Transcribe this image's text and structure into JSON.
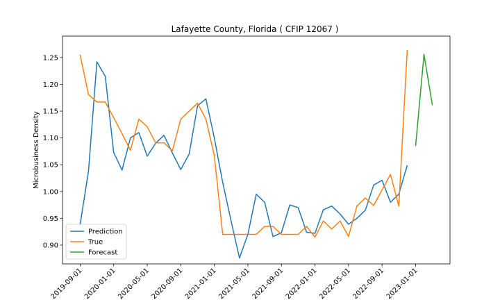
{
  "chart_data": {
    "type": "line",
    "title": "Lafayette County, Florida ( CFIP 12067 )",
    "xlabel": "",
    "ylabel": "Microbusiness Density",
    "x_ticks": [
      "2019-09-01",
      "2020-01-01",
      "2020-05-01",
      "2020-09-01",
      "2021-01-01",
      "2021-05-01",
      "2021-09-01",
      "2022-01-01",
      "2022-05-01",
      "2022-09-01",
      "2023-01-01"
    ],
    "ylim": [
      0.865,
      1.29
    ],
    "y_ticks": [
      0.9,
      0.95,
      1.0,
      1.05,
      1.1,
      1.15,
      1.2,
      1.25
    ],
    "grid": false,
    "legend_position": "lower-left",
    "series": [
      {
        "name": "Prediction",
        "color": "#1f77b4",
        "x": [
          "2019-09-01",
          "2019-10-01",
          "2019-11-01",
          "2019-12-01",
          "2020-01-01",
          "2020-02-01",
          "2020-03-01",
          "2020-04-01",
          "2020-05-01",
          "2020-06-01",
          "2020-07-01",
          "2020-08-01",
          "2020-09-01",
          "2020-10-01",
          "2020-11-01",
          "2020-12-01",
          "2021-01-01",
          "2021-02-01",
          "2021-03-01",
          "2021-04-01",
          "2021-05-01",
          "2021-06-01",
          "2021-07-01",
          "2021-08-01",
          "2021-09-01",
          "2021-10-01",
          "2021-11-01",
          "2021-12-01",
          "2022-01-01",
          "2022-02-01",
          "2022-03-01",
          "2022-04-01",
          "2022-05-01",
          "2022-06-01",
          "2022-07-01",
          "2022-08-01",
          "2022-09-01",
          "2022-10-01",
          "2022-11-01",
          "2022-12-01"
        ],
        "values": [
          0.938,
          1.038,
          1.242,
          1.215,
          1.073,
          1.04,
          1.1,
          1.11,
          1.066,
          1.09,
          1.105,
          1.072,
          1.041,
          1.07,
          1.16,
          1.173,
          1.1,
          1.017,
          0.945,
          0.876,
          0.92,
          0.995,
          0.98,
          0.916,
          0.923,
          0.975,
          0.97,
          0.924,
          0.922,
          0.966,
          0.973,
          0.958,
          0.939,
          0.95,
          0.965,
          1.012,
          1.021,
          0.98,
          0.995,
          1.049
        ]
      },
      {
        "name": "True",
        "color": "#ff7f0e",
        "x": [
          "2019-09-01",
          "2019-10-01",
          "2019-11-01",
          "2019-12-01",
          "2020-01-01",
          "2020-02-01",
          "2020-03-01",
          "2020-04-01",
          "2020-05-01",
          "2020-06-01",
          "2020-07-01",
          "2020-08-01",
          "2020-09-01",
          "2020-10-01",
          "2020-11-01",
          "2020-12-01",
          "2021-01-01",
          "2021-02-01",
          "2021-03-01",
          "2021-04-01",
          "2021-05-01",
          "2021-06-01",
          "2021-07-01",
          "2021-08-01",
          "2021-09-01",
          "2021-10-01",
          "2021-11-01",
          "2021-12-01",
          "2022-01-01",
          "2022-02-01",
          "2022-03-01",
          "2022-04-01",
          "2022-05-01",
          "2022-06-01",
          "2022-07-01",
          "2022-08-01",
          "2022-09-01",
          "2022-10-01",
          "2022-11-01",
          "2022-12-01"
        ],
        "values": [
          1.255,
          1.181,
          1.167,
          1.167,
          1.138,
          1.108,
          1.077,
          1.135,
          1.121,
          1.091,
          1.091,
          1.076,
          1.135,
          1.15,
          1.165,
          1.135,
          1.067,
          0.92,
          0.92,
          0.92,
          0.92,
          0.92,
          0.935,
          0.935,
          0.92,
          0.92,
          0.92,
          0.935,
          0.915,
          0.945,
          0.93,
          0.945,
          0.916,
          0.973,
          0.988,
          0.974,
          1.003,
          1.032,
          0.973,
          1.264
        ]
      },
      {
        "name": "Forecast",
        "color": "#2ca02c",
        "x": [
          "2023-01-01",
          "2023-02-01",
          "2023-03-01"
        ],
        "values": [
          1.085,
          1.256,
          1.161
        ]
      }
    ]
  }
}
